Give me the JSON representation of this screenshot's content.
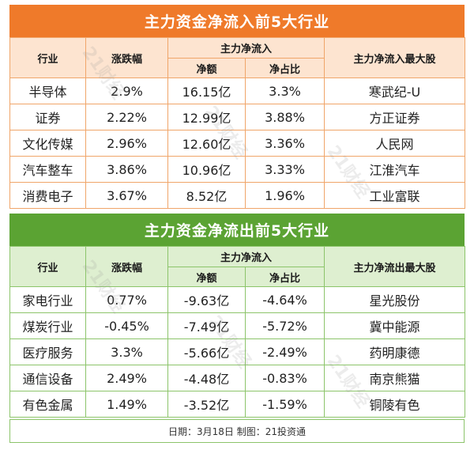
{
  "inflow": {
    "title": "主力资金净流入前5大行业",
    "headers": {
      "industry": "行业",
      "change": "涨跌幅",
      "main_flow": "主力净流入",
      "net_amount": "净额",
      "net_ratio": "净占比",
      "top_stock": "主力净流入最大股"
    },
    "rows": [
      {
        "industry": "半导体",
        "change": "2.9%",
        "net_amount": "16.15亿",
        "net_ratio": "3.3%",
        "top_stock": "寒武纪-U"
      },
      {
        "industry": "证券",
        "change": "2.22%",
        "net_amount": "12.99亿",
        "net_ratio": "3.88%",
        "top_stock": "方正证券"
      },
      {
        "industry": "文化传媒",
        "change": "2.96%",
        "net_amount": "12.60亿",
        "net_ratio": "3.36%",
        "top_stock": "人民网"
      },
      {
        "industry": "汽车整车",
        "change": "3.86%",
        "net_amount": "10.96亿",
        "net_ratio": "3.33%",
        "top_stock": "江淮汽车"
      },
      {
        "industry": "消费电子",
        "change": "3.67%",
        "net_amount": "8.52亿",
        "net_ratio": "1.96%",
        "top_stock": "工业富联"
      }
    ]
  },
  "outflow": {
    "title": "主力资金净流出前5大行业",
    "headers": {
      "industry": "行业",
      "change": "涨跌幅",
      "main_flow": "主力净流入",
      "net_amount": "净额",
      "net_ratio": "净占比",
      "top_stock": "主力净流出最大股"
    },
    "rows": [
      {
        "industry": "家电行业",
        "change": "0.77%",
        "net_amount": "-9.63亿",
        "net_ratio": "-4.64%",
        "top_stock": "星光股份"
      },
      {
        "industry": "煤炭行业",
        "change": "-0.45%",
        "net_amount": "-7.49亿",
        "net_ratio": "-5.72%",
        "top_stock": "冀中能源"
      },
      {
        "industry": "医疗服务",
        "change": "3.3%",
        "net_amount": "-5.66亿",
        "net_ratio": "-2.49%",
        "top_stock": "药明康德"
      },
      {
        "industry": "通信设备",
        "change": "2.49%",
        "net_amount": "-4.48亿",
        "net_ratio": "-0.83%",
        "top_stock": "南京熊猫"
      },
      {
        "industry": "有色金属",
        "change": "1.49%",
        "net_amount": "-3.52亿",
        "net_ratio": "-1.59%",
        "top_stock": "铜陵有色"
      }
    ]
  },
  "footer": "日期：3月18日 制图：21投资通",
  "watermark_text": "21财经",
  "colors": {
    "inflow_accent": "#ef7a2a",
    "inflow_header_bg": "#fde4d0",
    "outflow_accent": "#5ba333",
    "outflow_header_bg": "#deefd0"
  }
}
